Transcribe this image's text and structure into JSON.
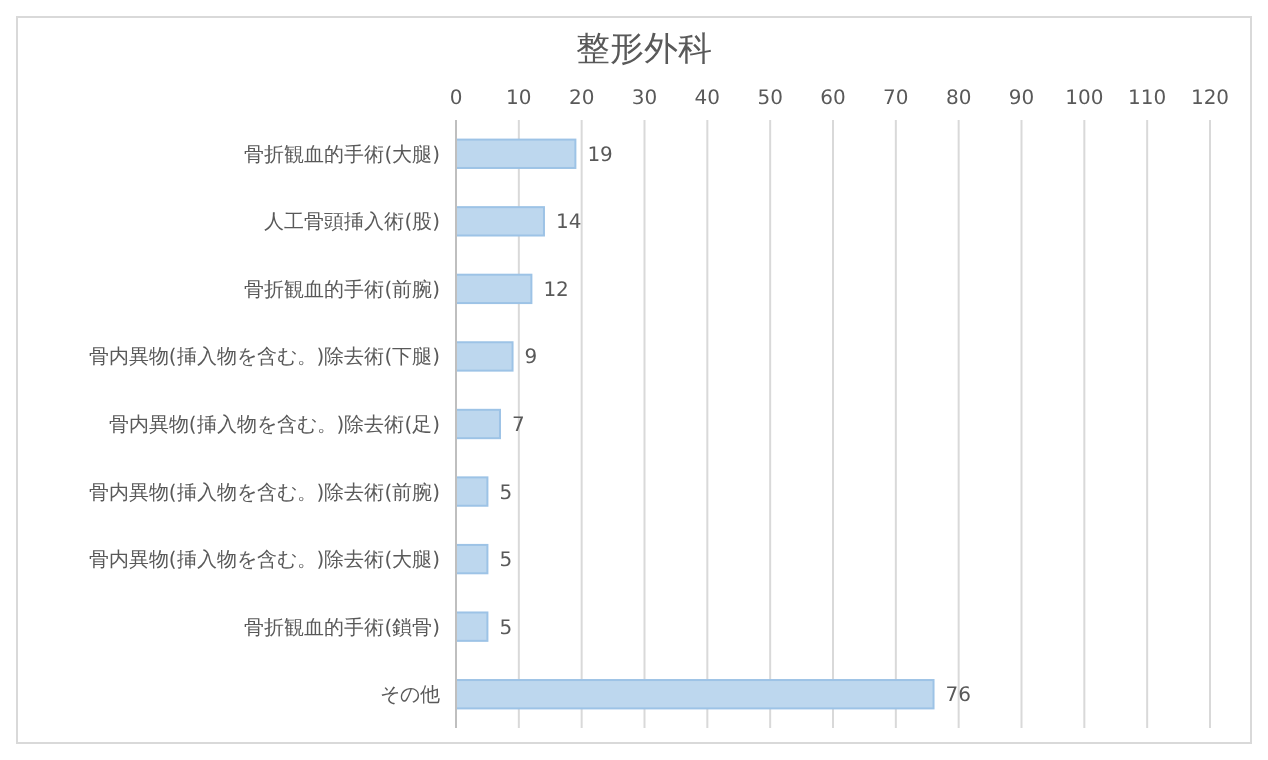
{
  "chart_data": {
    "type": "bar",
    "orientation": "horizontal",
    "title": "整形外科",
    "categories": [
      "骨折観血的手術(大腿)",
      "人工骨頭挿入術(股)",
      "骨折観血的手術(前腕)",
      "骨内異物(挿入物を含む。)除去術(下腿)",
      "骨内異物(挿入物を含む。)除去術(足)",
      "骨内異物(挿入物を含む。)除去術(前腕)",
      "骨内異物(挿入物を含む。)除去術(大腿)",
      "骨折観血的手術(鎖骨)",
      "その他"
    ],
    "values": [
      19,
      14,
      12,
      9,
      7,
      5,
      5,
      5,
      76
    ],
    "color": "#bdd7ee",
    "xlim": [
      0,
      120
    ],
    "xticks": [
      0,
      10,
      20,
      30,
      40,
      50,
      60,
      70,
      80,
      90,
      100,
      110,
      120
    ],
    "grid": "x",
    "data_labels": true
  }
}
